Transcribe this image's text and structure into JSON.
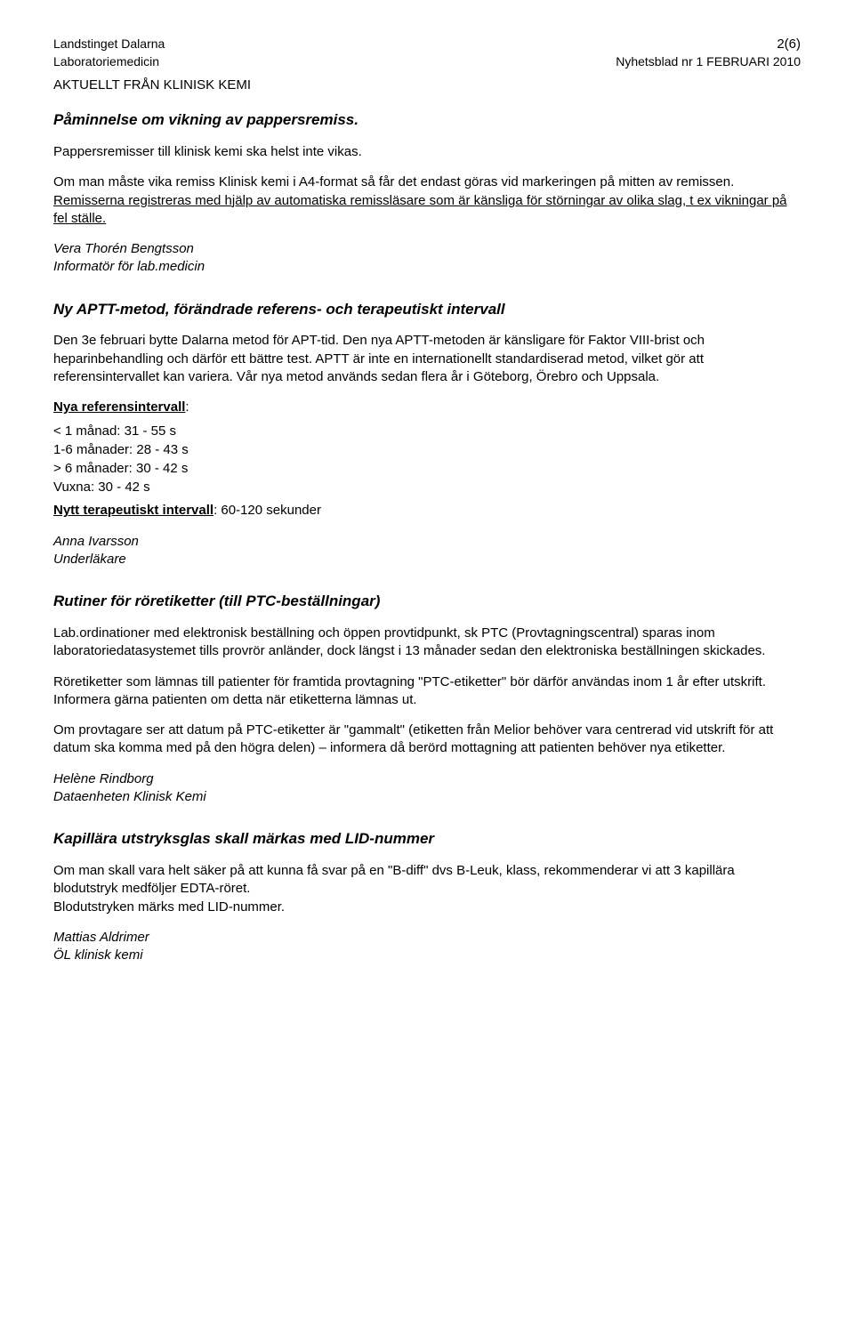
{
  "header": {
    "org1": "Landstinget Dalarna",
    "org2": "Laboratoriemedicin",
    "pagenum": "2(6)",
    "newsletter": "Nyhetsblad nr 1 FEBRUARI 2010",
    "from": "AKTUELLT FRÅN KLINISK KEMI"
  },
  "sec1": {
    "title": "Påminnelse om vikning av pappersremiss.",
    "p1": "Pappersremisser till klinisk kemi ska helst inte vikas.",
    "p2a": "Om man måste vika remiss Klinisk kemi i A4-format så får det endast göras vid markeringen på mitten av remissen.",
    "p2b": "Remisserna registreras med hjälp av automatiska remissläsare som är känsliga för störningar av olika slag, t ex vikningar på fel ställe.",
    "sig_name": "Vera Thorén Bengtsson",
    "sig_role": "Informatör för lab.medicin"
  },
  "sec2": {
    "title": "Ny APTT-metod, förändrade referens- och terapeutiskt intervall",
    "p1": "Den 3e februari bytte Dalarna metod för APT-tid. Den nya APTT-metoden är känsligare för Faktor VIII-brist och heparinbehandling och därför ett bättre test. APTT är inte en internationellt standardiserad metod, vilket gör att referensintervallet kan variera. Vår nya metod används sedan flera år i Göteborg, Örebro och Uppsala.",
    "ref_label": "Nya referensintervall",
    "ref_colon": ":",
    "ref1": "< 1 månad: 31 - 55 s",
    "ref2": "1-6 månader: 28 - 43 s",
    "ref3": "> 6 månader: 30 - 42 s",
    "ref4": "Vuxna: 30 - 42 s",
    "ther_label": "Nytt terapeutiskt intervall",
    "ther_val": ": 60-120 sekunder",
    "sig_name": "Anna Ivarsson",
    "sig_role": "Underläkare"
  },
  "sec3": {
    "title": "Rutiner för röretiketter (till PTC-beställningar)",
    "p1": "Lab.ordinationer med elektronisk beställning och öppen provtidpunkt, sk PTC (Provtagningscentral) sparas inom laboratoriedatasystemet tills provrör anländer, dock längst i 13 månader sedan den elektroniska beställningen skickades.",
    "p2": "Röretiketter som lämnas till patienter för framtida provtagning \"PTC-etiketter\" bör därför användas inom 1 år efter utskrift.",
    "p2b": "Informera gärna patienten om detta när etiketterna lämnas ut.",
    "p3": "Om provtagare ser att datum på PTC-etiketter är \"gammalt\" (etiketten från Melior behöver vara centrerad vid utskrift för att datum ska komma med på den högra delen) – informera då berörd mottagning att patienten behöver nya etiketter.",
    "sig_name": "Helène Rindborg",
    "sig_role": "Dataenheten Klinisk Kemi"
  },
  "sec4": {
    "title": "Kapillära utstryksglas skall märkas med LID-nummer",
    "p1": "Om man skall vara helt säker på att kunna få svar på en \"B-diff\" dvs B-Leuk, klass, rekommenderar vi att 3 kapillära blodutstryk medföljer EDTA-röret.",
    "p1b": "Blodutstryken märks med LID-nummer.",
    "sig_name": "Mattias Aldrimer",
    "sig_role": "ÖL klinisk kemi"
  }
}
